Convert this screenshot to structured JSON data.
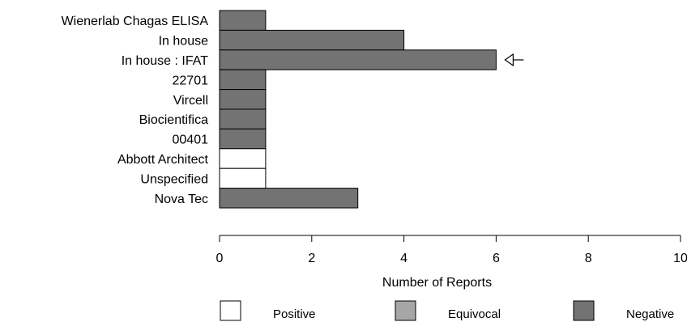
{
  "chart_data": {
    "type": "bar",
    "orientation": "horizontal",
    "title": "",
    "xlabel": "Number of Reports",
    "ylabel": "",
    "xlim": [
      0,
      10
    ],
    "x_ticks": [
      "0",
      "2",
      "4",
      "6",
      "8",
      "10"
    ],
    "grid": false,
    "categories": [
      "Wienerlab Chagas ELISA",
      "In house",
      "In house : IFAT",
      "22701",
      "Vircell",
      "Biocientifica",
      "00401",
      "Abbott Architect",
      "Unspecified",
      "Nova Tec"
    ],
    "series": [
      {
        "name": "Positive",
        "color": "#ffffff",
        "values": [
          0,
          0,
          0,
          0,
          0,
          0,
          0,
          1,
          1,
          0
        ]
      },
      {
        "name": "Equivocal",
        "color": "#a6a6a6",
        "values": [
          0,
          0,
          0,
          0,
          0,
          0,
          0,
          0,
          0,
          0
        ]
      },
      {
        "name": "Negative",
        "color": "#737373",
        "values": [
          1,
          4,
          6,
          1,
          1,
          1,
          1,
          0,
          0,
          3
        ]
      }
    ],
    "highlighted_category": "In house : IFAT",
    "legend_position": "bottom"
  }
}
